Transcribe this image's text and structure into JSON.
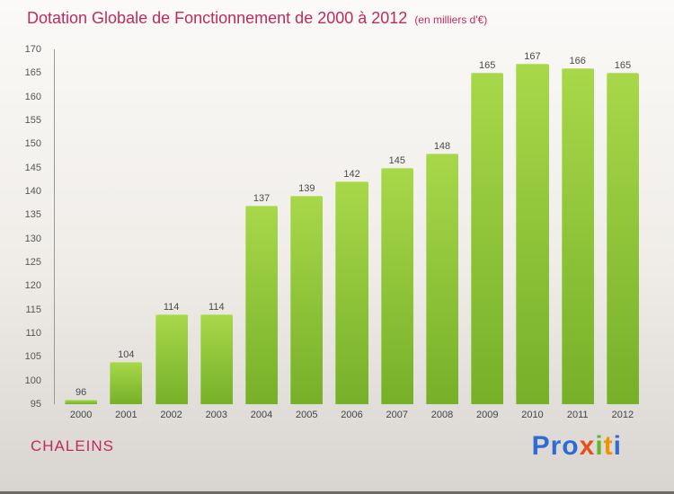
{
  "title": {
    "main": "Dotation Globale de Fonctionnement de 2000 à 2012",
    "unit": "(en milliers d'€)"
  },
  "colors": {
    "accent": "#c02a5e",
    "bar_top": "#a8d84a",
    "bar_bottom": "#76b028",
    "tick_text": "#555555"
  },
  "footer": {
    "commune": "CHALEINS",
    "logo_letters": [
      {
        "ch": "P",
        "color": "#2e6bd6"
      },
      {
        "ch": "r",
        "color": "#2e6bd6"
      },
      {
        "ch": "o",
        "color": "#2e6bd6"
      },
      {
        "ch": "x",
        "color": "#e94e1b"
      },
      {
        "ch": "i",
        "color": "#64b32c"
      },
      {
        "ch": "t",
        "color": "#f39200"
      },
      {
        "ch": "i",
        "color": "#2e6bd6"
      }
    ]
  },
  "chart_data": {
    "type": "bar",
    "title": "Dotation Globale de Fonctionnement de 2000 à 2012",
    "subtitle": "(en milliers d'€)",
    "categories": [
      "2000",
      "2001",
      "2002",
      "2003",
      "2004",
      "2005",
      "2006",
      "2007",
      "2008",
      "2009",
      "2010",
      "2011",
      "2012"
    ],
    "values": [
      96,
      104,
      114,
      114,
      137,
      139,
      142,
      145,
      148,
      165,
      167,
      166,
      165
    ],
    "xlabel": "",
    "ylabel": "",
    "ylim": [
      95,
      170
    ],
    "ytick_step": 5,
    "grid": false,
    "legend": "none"
  }
}
